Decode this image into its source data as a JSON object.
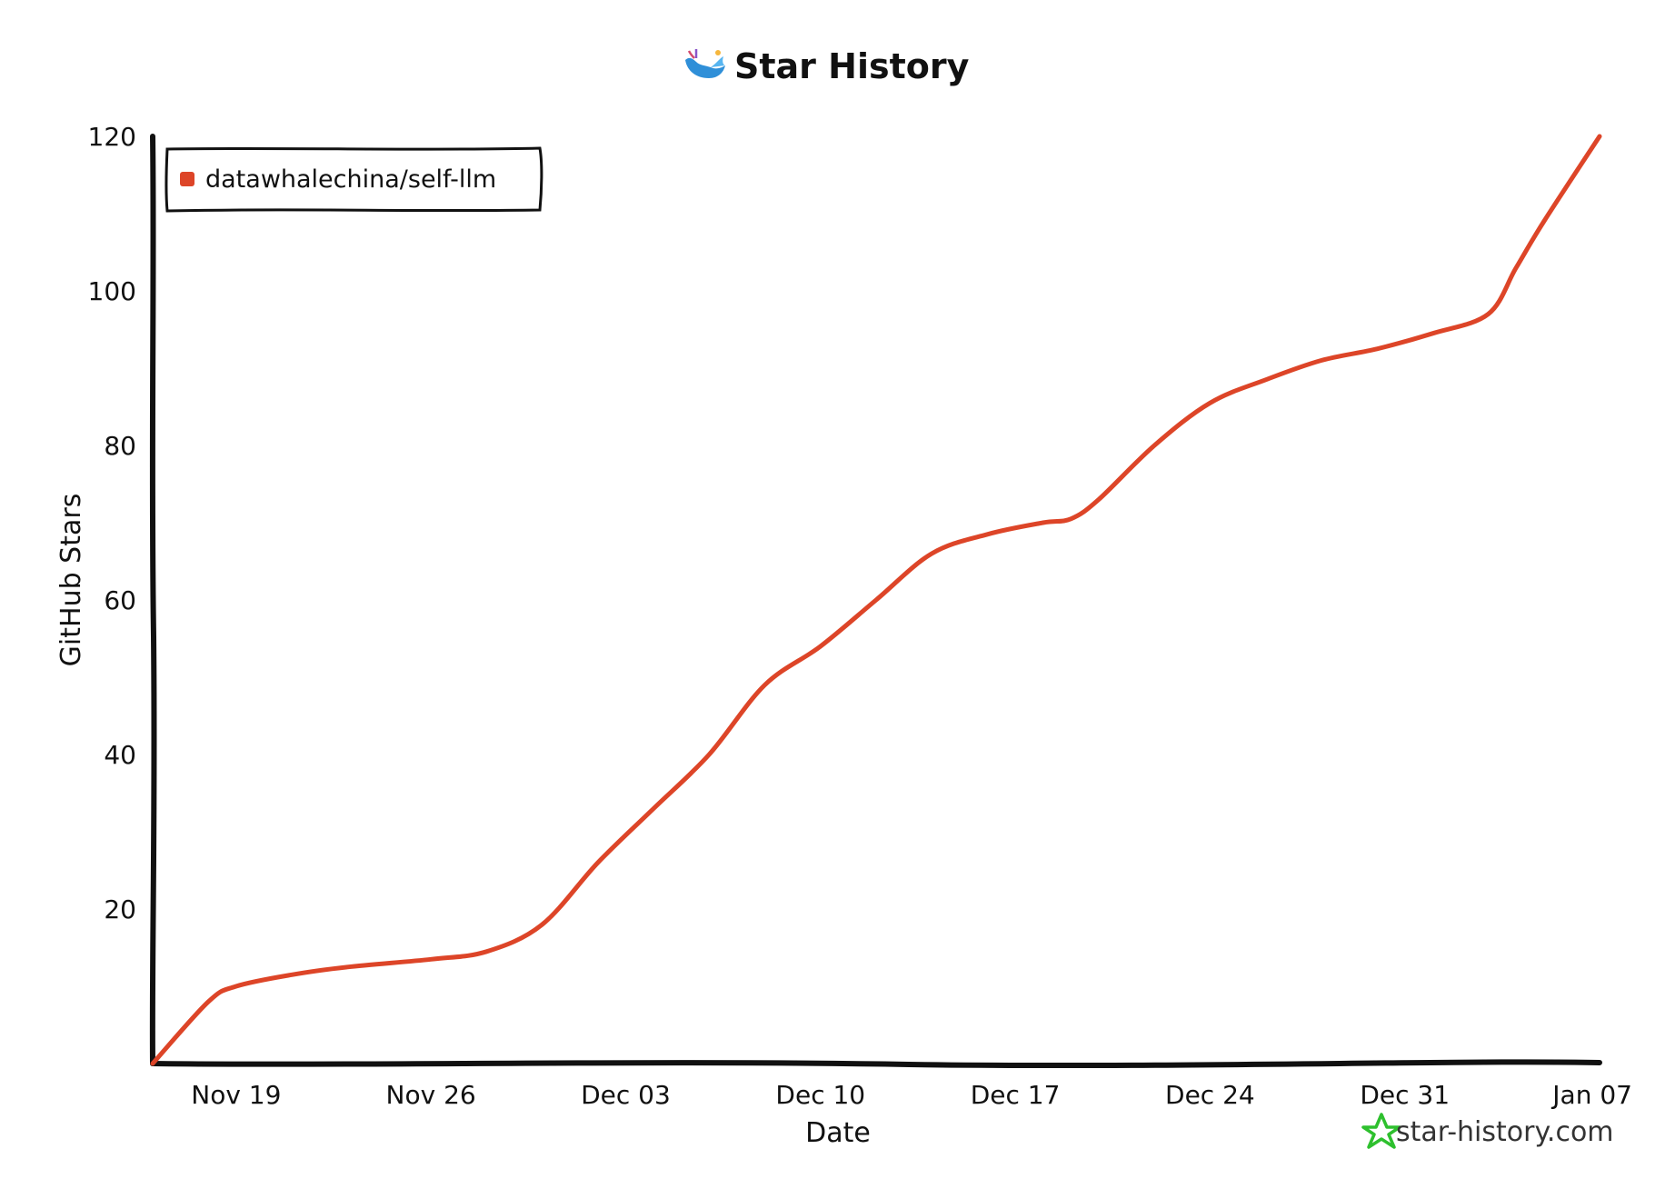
{
  "chart_data": {
    "type": "line",
    "title": "Star History",
    "xlabel": "Date",
    "ylabel": "GitHub Stars",
    "x_tick_labels": [
      "Nov 19",
      "Nov 26",
      "Dec 03",
      "Dec 10",
      "Dec 17",
      "Dec 24",
      "Dec 31",
      "Jan 07"
    ],
    "y_tick_labels": [
      "20",
      "40",
      "60",
      "80",
      "100",
      "120"
    ],
    "y_ticks": [
      20,
      40,
      60,
      80,
      100,
      120
    ],
    "ylim": [
      0,
      120
    ],
    "xlim": [
      "Nov 16",
      "Jan 07"
    ],
    "grid": false,
    "legend_position": "top-left",
    "series": [
      {
        "name": "datawhalechina/self-llm",
        "color": "#dd4528",
        "x": [
          "Nov 16",
          "Nov 18",
          "Nov 19",
          "Nov 21",
          "Nov 23",
          "Nov 26",
          "Nov 28",
          "Nov 30",
          "Dec 02",
          "Dec 04",
          "Dec 06",
          "Dec 08",
          "Dec 10",
          "Dec 12",
          "Dec 14",
          "Dec 16",
          "Dec 18",
          "Dec 19",
          "Dec 20",
          "Dec 22",
          "Dec 24",
          "Dec 26",
          "Dec 28",
          "Dec 30",
          "Jan 01",
          "Jan 03",
          "Jan 04",
          "Jan 05",
          "Jan 07"
        ],
        "y": [
          0,
          8,
          10,
          11.5,
          12.5,
          13.5,
          14.5,
          18,
          26,
          33,
          40,
          49,
          54,
          60,
          66,
          68.5,
          70,
          70.5,
          73,
          80,
          85.5,
          88.5,
          91,
          92.5,
          94.5,
          97,
          103,
          109,
          120
        ]
      }
    ]
  },
  "watermark": {
    "text": "star-history.com",
    "icon": "star-history-logo-icon",
    "color": "#2ec02e"
  },
  "title_icon": "whale-logo-icon"
}
